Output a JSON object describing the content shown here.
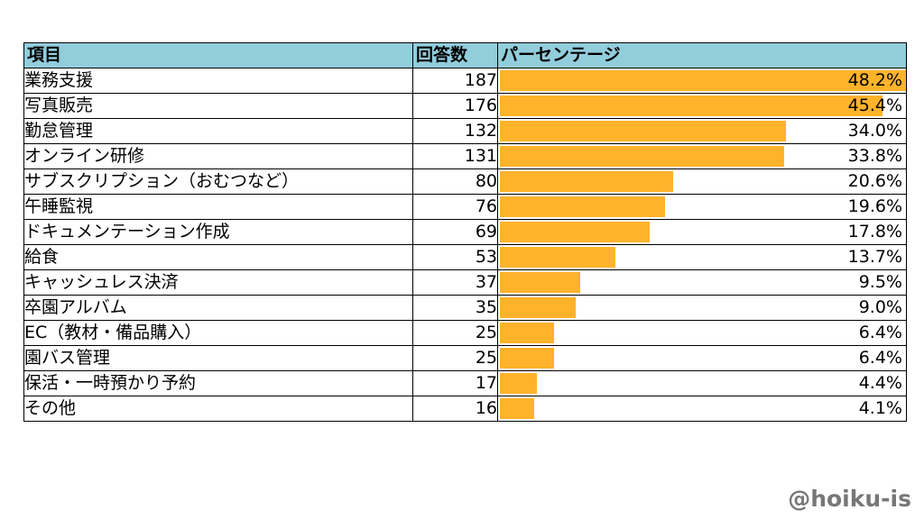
{
  "table": {
    "headers": {
      "item": "項目",
      "count": "回答数",
      "percent": "パーセンテージ"
    }
  },
  "chart_data": {
    "type": "table",
    "columns": [
      "項目",
      "回答数",
      "パーセンテージ"
    ],
    "bar_color": "#ffb32b",
    "header_color": "#92cddc",
    "bar_max_percent": 60,
    "rows": [
      {
        "label": "業務支援",
        "count": "187",
        "percent": 48.2,
        "percent_text": "48.2%"
      },
      {
        "label": "写真販売",
        "count": "176",
        "percent": 45.4,
        "percent_text": "45.4%"
      },
      {
        "label": "勤怠管理",
        "count": "132",
        "percent": 34.0,
        "percent_text": "34.0%"
      },
      {
        "label": "オンライン研修",
        "count": "131",
        "percent": 33.8,
        "percent_text": "33.8%"
      },
      {
        "label": "サブスクリプション（おむつなど）",
        "count": "80",
        "percent": 20.6,
        "percent_text": "20.6%"
      },
      {
        "label": "午睡監視",
        "count": "76",
        "percent": 19.6,
        "percent_text": "19.6%"
      },
      {
        "label": "ドキュメンテーション作成",
        "count": "69",
        "percent": 17.8,
        "percent_text": "17.8%"
      },
      {
        "label": "給食",
        "count": "53",
        "percent": 13.7,
        "percent_text": "13.7%"
      },
      {
        "label": "キャッシュレス決済",
        "count": "37",
        "percent": 9.5,
        "percent_text": "9.5%"
      },
      {
        "label": "卒園アルバム",
        "count": "35",
        "percent": 9.0,
        "percent_text": "9.0%"
      },
      {
        "label": "EC（教材・備品購入）",
        "count": "25",
        "percent": 6.4,
        "percent_text": "6.4%"
      },
      {
        "label": "園バス管理",
        "count": "25",
        "percent": 6.4,
        "percent_text": "6.4%"
      },
      {
        "label": "保活・一時預かり予約",
        "count": "17",
        "percent": 4.4,
        "percent_text": "4.4%"
      },
      {
        "label": "その他",
        "count": "16",
        "percent": 4.1,
        "percent_text": "4.1%"
      }
    ]
  },
  "watermark": "@hoiku-is"
}
